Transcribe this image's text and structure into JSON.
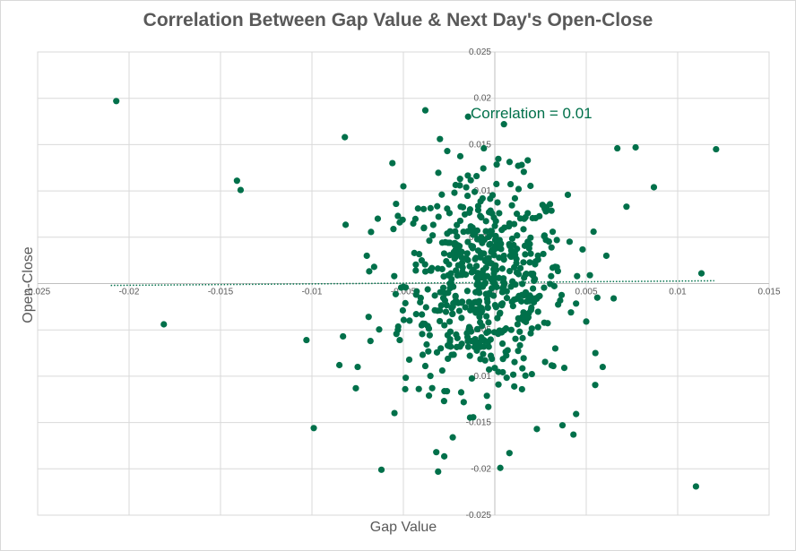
{
  "chart_data": {
    "type": "scatter",
    "title": "Correlation Between Gap Value & Next Day's Open-Close",
    "xlabel": "Gap Value",
    "ylabel": "Open-Close",
    "annotation": "Correlation = 0.01",
    "xlim": [
      -0.025,
      0.015
    ],
    "ylim": [
      -0.025,
      0.025
    ],
    "x_ticks": [
      -0.025,
      -0.02,
      -0.015,
      -0.01,
      -0.005,
      0,
      0.005,
      0.01,
      0.015
    ],
    "x_tick_labels": [
      "-0.025",
      "-0.02",
      "-0.015",
      "-0.01",
      "-0.005",
      "0",
      "0.005",
      "0.01",
      "0.015"
    ],
    "y_ticks": [
      -0.025,
      -0.02,
      -0.015,
      -0.01,
      -0.005,
      0,
      0.005,
      0.01,
      0.015,
      0.02,
      0.025
    ],
    "y_tick_labels": [
      "-0.025",
      "-0.02",
      "-0.015",
      "-0.01",
      "-0.005",
      "0",
      "0.005",
      "0.01",
      "0.015",
      "0.02",
      "0.025"
    ],
    "grid": true,
    "trendline": {
      "style": "dotted",
      "x": [
        -0.021,
        0.012
      ],
      "y": [
        -0.0002,
        0.0003
      ]
    },
    "marker_color": "#00704A",
    "points": [
      [
        -0.0207,
        0.0197
      ],
      [
        -0.0181,
        -0.0044
      ],
      [
        -0.0141,
        0.0111
      ],
      [
        -0.0139,
        0.0101
      ],
      [
        -0.0082,
        0.0158
      ],
      [
        -0.0103,
        -0.0061
      ],
      [
        -0.0099,
        -0.0156
      ],
      [
        -0.0085,
        -0.0088
      ],
      [
        -0.0083,
        -0.0057
      ],
      [
        -0.0076,
        -0.0113
      ],
      [
        -0.0075,
        -0.009
      ],
      [
        -0.007,
        0.003
      ],
      [
        -0.0069,
        -0.0036
      ],
      [
        -0.0068,
        -0.0062
      ],
      [
        -0.0066,
        0.0018
      ],
      [
        -0.0064,
        0.007
      ],
      [
        -0.0062,
        -0.0201
      ],
      [
        -0.0056,
        0.013
      ],
      [
        -0.0055,
        0.0008
      ],
      [
        -0.0054,
        0.0086
      ],
      [
        -0.0053,
        0.0073
      ],
      [
        -0.0052,
        0.0066
      ],
      [
        -0.0053,
        -0.005
      ],
      [
        -0.0052,
        -0.0061
      ],
      [
        -0.005,
        0.0105
      ],
      [
        -0.0049,
        -0.0114
      ],
      [
        -0.0044,
        0.0033
      ],
      [
        -0.0043,
        -0.0012
      ],
      [
        -0.0043,
        -0.0033
      ],
      [
        -0.0042,
        0.0081
      ],
      [
        -0.004,
        0.0025
      ],
      [
        -0.004,
        -0.0045
      ],
      [
        -0.0038,
        0.0187
      ],
      [
        -0.0038,
        -0.0089
      ],
      [
        -0.0036,
        -0.0121
      ],
      [
        -0.0032,
        -0.0182
      ],
      [
        -0.0031,
        -0.0203
      ],
      [
        -0.003,
        0.0156
      ],
      [
        -0.0026,
        0.0143
      ],
      [
        -0.0023,
        -0.0166
      ],
      [
        -0.0029,
        0.0096
      ],
      [
        -0.0026,
        0.0054
      ],
      [
        -0.0019,
        0.0113
      ],
      [
        -0.0017,
        -0.0128
      ],
      [
        -0.0014,
        -0.0047
      ],
      [
        -0.0006,
        0.0146
      ],
      [
        0.0005,
        0.0172
      ],
      [
        0.0003,
        -0.0199
      ],
      [
        0.0008,
        -0.0183
      ],
      [
        0.0018,
        0.0133
      ],
      [
        0.0023,
        -0.0157
      ],
      [
        0.0043,
        -0.0163
      ],
      [
        0.0037,
        -0.0153
      ],
      [
        0.0038,
        -0.0091
      ],
      [
        0.0055,
        -0.0075
      ],
      [
        0.005,
        -0.0041
      ],
      [
        0.0052,
        0.0009
      ],
      [
        0.0054,
        0.0056
      ],
      [
        0.0061,
        0.003
      ],
      [
        0.0065,
        -0.0016
      ],
      [
        0.0067,
        0.0146
      ],
      [
        0.0072,
        0.0083
      ],
      [
        0.0077,
        0.0147
      ],
      [
        0.0087,
        0.0104
      ],
      [
        0.0113,
        0.0011
      ],
      [
        0.011,
        -0.0219
      ],
      [
        0.0121,
        0.0145
      ],
      [
        0.0059,
        -0.009
      ],
      [
        0.0045,
        0.0008
      ],
      [
        0.0032,
        -0.0089
      ],
      [
        -0.0022,
        0.0027
      ],
      [
        -0.0012,
        0.004
      ],
      [
        -0.0008,
        0.0073
      ],
      [
        0.0008,
        0.0065
      ],
      [
        0.0013,
        0.0102
      ],
      [
        0.0011,
        0.0092
      ],
      [
        -0.0006,
        -0.0061
      ],
      [
        0.0002,
        -0.0109
      ],
      [
        -0.002,
        -0.0021
      ],
      [
        0.0024,
        -0.0014
      ],
      [
        0.0027,
        0.0051
      ],
      [
        0.0031,
        0.0039
      ],
      [
        -0.003,
        -0.0029
      ],
      [
        0.0016,
        -0.004
      ],
      [
        -0.001,
        0.0019
      ],
      [
        -0.0004,
        -0.002
      ],
      [
        0.0005,
        0.003
      ],
      [
        0.0,
        0.0
      ],
      [
        0.0012,
        0.0012
      ],
      [
        -0.0015,
        -0.0008
      ],
      [
        0.002,
        -0.0026
      ],
      [
        -0.0024,
        0.0011
      ],
      [
        0.0007,
        -0.0072
      ],
      [
        -0.0011,
        0.0099
      ],
      [
        0.0018,
        0.0076
      ],
      [
        -0.0019,
        -0.0068
      ],
      [
        0.0033,
        0.0018
      ],
      [
        -0.0034,
        0.0052
      ],
      [
        0.0009,
        -0.005
      ],
      [
        -0.0003,
        0.0042
      ]
    ]
  }
}
